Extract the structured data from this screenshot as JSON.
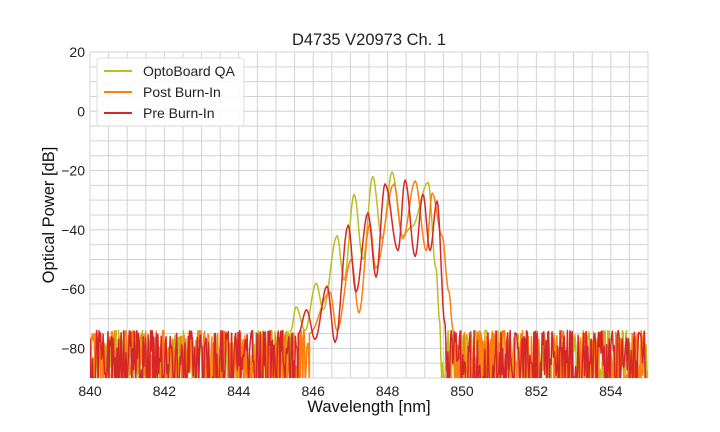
{
  "chart_data": {
    "type": "line",
    "title": "D4735 V20973 Ch. 1",
    "xlabel": "Wavelength [nm]",
    "ylabel": "Optical Power [dB]",
    "xlim": [
      840,
      855
    ],
    "ylim": [
      -90,
      20
    ],
    "xticks": [
      840,
      842,
      844,
      846,
      848,
      850,
      852,
      854
    ],
    "xtick_labels": [
      "840",
      "842",
      "844",
      "846",
      "848",
      "850",
      "852",
      "854"
    ],
    "yticks": [
      20,
      0,
      -20,
      -40,
      -60,
      -80
    ],
    "ytick_labels": [
      "20",
      "0",
      "−20",
      "−40",
      "−60",
      "−80"
    ],
    "grid": true,
    "grid_minor_x_step": 0.5,
    "grid_minor_y_step": 5,
    "legend_position": "top-left",
    "noise_floor_db": [
      -90,
      -74
    ],
    "series": [
      {
        "name": "OptoBoard QA",
        "color": "#bcbd22",
        "noise_ranges": [
          [
            840,
            845.4
          ],
          [
            849.45,
            855
          ]
        ],
        "x": [
          845.4,
          845.54,
          845.78,
          846.08,
          846.27,
          846.64,
          846.83,
          847.1,
          847.34,
          847.6,
          847.85,
          848.12,
          848.4,
          848.65,
          849.09,
          849.3,
          849.4,
          849.45
        ],
        "y": [
          -74,
          -66,
          -74,
          -58,
          -67,
          -42,
          -57,
          -28,
          -50,
          -22,
          -43,
          -20.5,
          -42,
          -39,
          -24,
          -53,
          -71,
          -88
        ]
      },
      {
        "name": "Post Burn-In",
        "color": "#ff7f0e",
        "noise_ranges": [
          [
            840,
            845.9
          ],
          [
            849.8,
            855
          ]
        ],
        "x": [
          845.9,
          846.45,
          846.64,
          847.02,
          847.23,
          847.52,
          847.68,
          848.17,
          848.41,
          848.74,
          849.04,
          849.2,
          849.46,
          849.65,
          849.75,
          849.8
        ],
        "y": [
          -75,
          -61,
          -74,
          -50,
          -68,
          -38,
          -53,
          -24.5,
          -43,
          -23.5,
          -47,
          -27.6,
          -42,
          -61,
          -73,
          -88
        ]
      },
      {
        "name": "Pre Burn-In",
        "color": "#d62728",
        "noise_ranges": [
          [
            840,
            845.6
          ],
          [
            849.6,
            855
          ]
        ],
        "x": [
          845.6,
          845.82,
          846.05,
          846.37,
          846.59,
          846.94,
          847.15,
          847.47,
          847.69,
          847.93,
          848.28,
          848.47,
          848.74,
          848.95,
          849.14,
          849.33,
          849.54,
          849.6
        ],
        "y": [
          -75,
          -67,
          -77,
          -59,
          -78,
          -38.4,
          -61,
          -34.3,
          -56,
          -24.5,
          -47,
          -23.2,
          -49,
          -28,
          -47,
          -30.3,
          -71.5,
          -88
        ]
      }
    ]
  }
}
